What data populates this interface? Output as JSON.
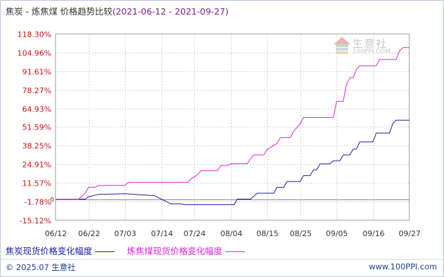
{
  "title": {
    "main": "焦炭 - 炼焦煤 价格趋势比较",
    "range": "(2021-06-12 - 2021-09-27)"
  },
  "legend": [
    {
      "label": "焦炭现货价格变化幅度",
      "color": "#1a1aa0"
    },
    {
      "label": "炼焦煤现货价格变化幅度",
      "color": "#e020d8"
    }
  ],
  "footer": {
    "copyright": "© 2025.07 生意社",
    "site": "www.100PPI.com"
  },
  "watermark": {
    "name": "生意社",
    "url": "100PPI.COM"
  },
  "chart_data": {
    "type": "line",
    "y_tick_labels": [
      "118.30%",
      "104.96%",
      "91.61%",
      "78.27%",
      "64.93%",
      "51.59%",
      "38.25%",
      "24.91%",
      "11.57%",
      "-1.78%",
      "-15.12%"
    ],
    "y_ticks": [
      118.3,
      104.96,
      91.61,
      78.27,
      64.93,
      51.59,
      38.25,
      24.91,
      11.57,
      -1.78,
      -15.12
    ],
    "ylim": [
      -15.12,
      118.3
    ],
    "zero_label": "0",
    "x_tick_labels": [
      "06/12",
      "06/22",
      "07/03",
      "07/14",
      "07/24",
      "08/04",
      "08/15",
      "08/25",
      "09/05",
      "09/16",
      "09/27"
    ],
    "x_ticks": [
      0,
      10,
      21,
      32,
      42,
      53,
      64,
      74,
      85,
      96,
      107
    ],
    "xlim": [
      0,
      107
    ],
    "grid": true,
    "series": [
      {
        "name": "焦炭现货价格变化幅度",
        "color": "#1a1aa0",
        "points": [
          [
            0,
            0
          ],
          [
            9,
            0
          ],
          [
            10,
            1.7
          ],
          [
            13,
            3.4
          ],
          [
            21,
            3.9
          ],
          [
            30,
            2.4
          ],
          [
            32,
            0
          ],
          [
            35,
            -3.4
          ],
          [
            38,
            -3.4
          ],
          [
            39,
            -4.0
          ],
          [
            54,
            -4.0
          ],
          [
            55,
            0
          ],
          [
            59,
            0
          ],
          [
            61,
            4.2
          ],
          [
            66,
            4.2
          ],
          [
            67,
            8.4
          ],
          [
            69,
            8.4
          ],
          [
            70,
            12.6
          ],
          [
            74,
            12.6
          ],
          [
            75,
            16.8
          ],
          [
            77,
            16.8
          ],
          [
            78,
            21.0
          ],
          [
            79,
            21.0
          ],
          [
            80,
            25.2
          ],
          [
            83,
            25.2
          ],
          [
            84,
            27.5
          ],
          [
            86,
            27.5
          ],
          [
            87,
            31.6
          ],
          [
            89,
            31.6
          ],
          [
            90,
            35.8
          ],
          [
            91,
            35.8
          ],
          [
            92,
            41.0
          ],
          [
            96,
            41.0
          ],
          [
            97,
            47.3
          ],
          [
            101,
            47.3
          ],
          [
            102,
            54.0
          ],
          [
            103,
            56.5
          ],
          [
            107,
            56.5
          ]
        ]
      },
      {
        "name": "炼焦煤现货价格变化幅度",
        "color": "#e020d8",
        "points": [
          [
            0,
            0
          ],
          [
            7,
            0
          ],
          [
            8,
            2.2
          ],
          [
            9,
            4.5
          ],
          [
            10,
            8.5
          ],
          [
            12,
            8.5
          ],
          [
            13,
            9.8
          ],
          [
            21,
            9.8
          ],
          [
            22,
            12.0
          ],
          [
            40,
            12.0
          ],
          [
            41,
            14.5
          ],
          [
            43,
            17.5
          ],
          [
            44,
            20.3
          ],
          [
            49,
            20.3
          ],
          [
            50,
            24.0
          ],
          [
            52,
            24.0
          ],
          [
            53,
            25.3
          ],
          [
            58,
            25.3
          ],
          [
            59,
            29.0
          ],
          [
            60,
            31.6
          ],
          [
            63,
            31.6
          ],
          [
            64,
            35.5
          ],
          [
            65,
            37.0
          ],
          [
            67,
            40.0
          ],
          [
            68,
            44.0
          ],
          [
            71,
            44.0
          ],
          [
            72,
            48.5
          ],
          [
            74,
            54.0
          ],
          [
            75,
            58.5
          ],
          [
            84,
            58.5
          ],
          [
            85,
            70.0
          ],
          [
            87,
            70.0
          ],
          [
            88,
            82.0
          ],
          [
            89,
            87.0
          ],
          [
            90,
            87.0
          ],
          [
            91,
            93.0
          ],
          [
            92,
            95.5
          ],
          [
            97,
            95.5
          ],
          [
            98,
            100.0
          ],
          [
            103,
            100.0
          ],
          [
            104,
            106.0
          ],
          [
            105,
            108.5
          ],
          [
            107,
            108.5
          ]
        ]
      }
    ]
  }
}
